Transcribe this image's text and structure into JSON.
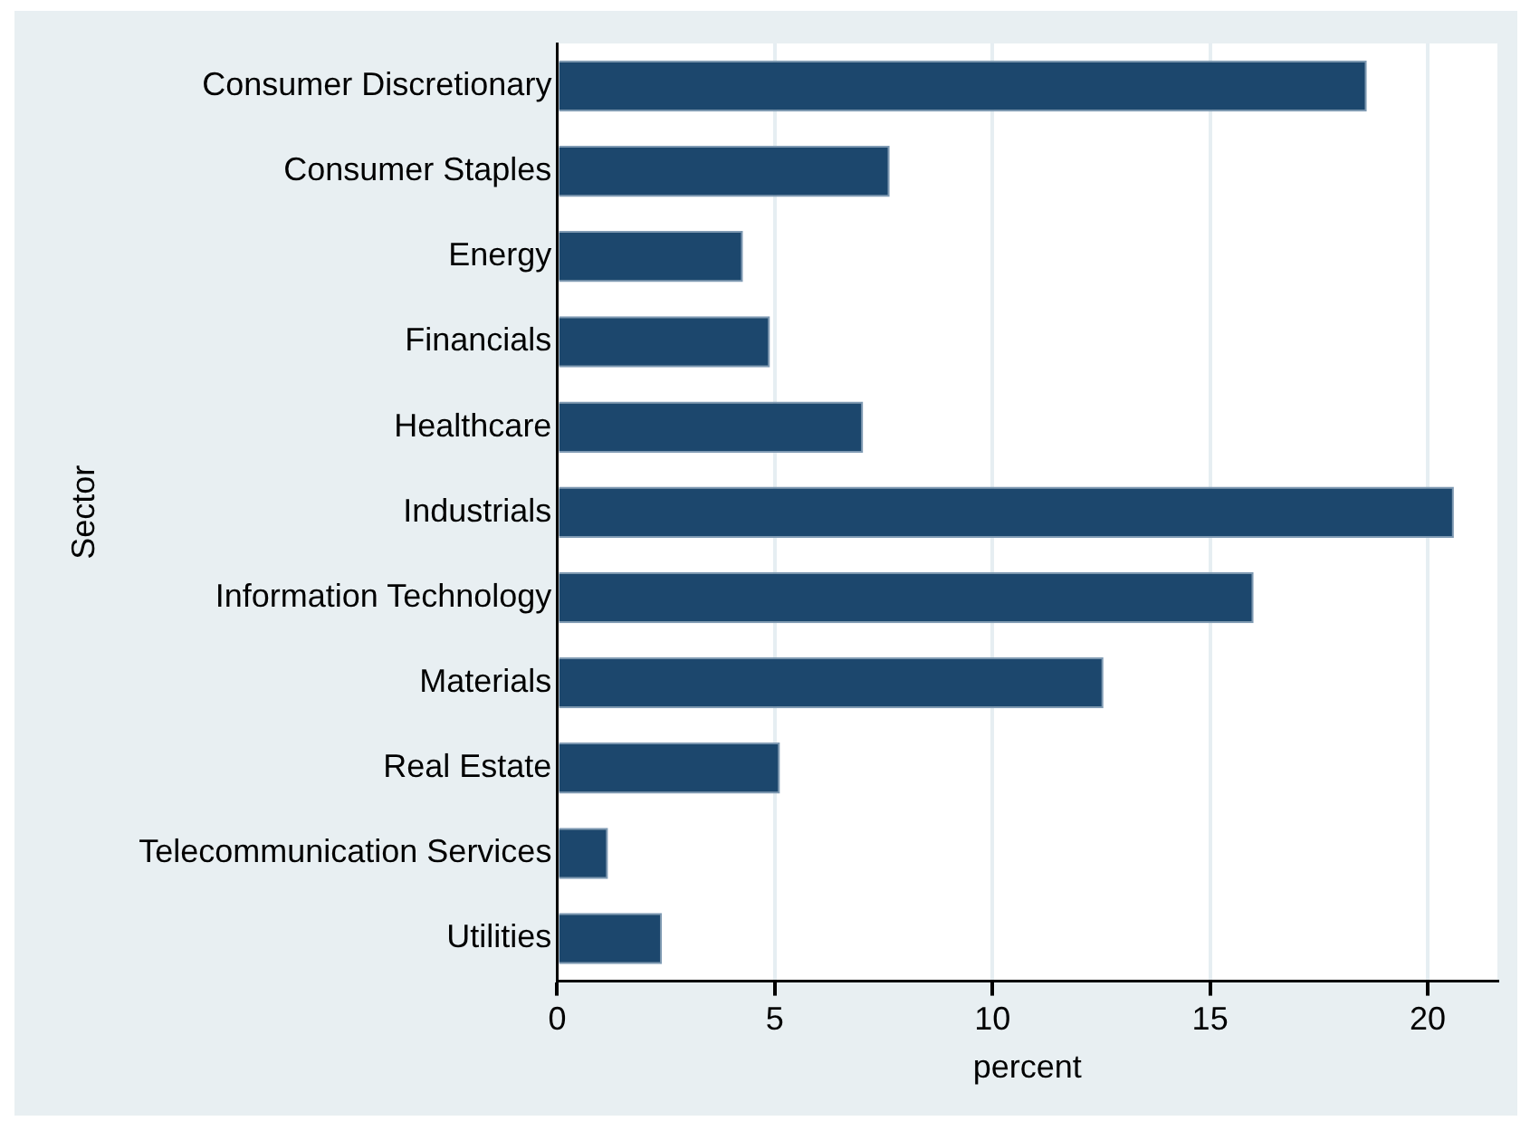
{
  "chart_data": {
    "type": "bar",
    "orientation": "horizontal",
    "xlabel": "percent",
    "ylabel": "Sector",
    "categories": [
      "Consumer Discretionary",
      "Consumer Staples",
      "Energy",
      "Financials",
      "Healthcare",
      "Industrials",
      "Information Technology",
      "Materials",
      "Real Estate",
      "Telecommunication Services",
      "Utilities"
    ],
    "values": [
      18.6,
      7.64,
      4.27,
      4.89,
      7.03,
      20.6,
      16.0,
      12.55,
      5.12,
      1.17,
      2.41
    ],
    "color": "#1c476d",
    "xlim": [
      0,
      21.6
    ],
    "xticks": [
      0,
      5,
      10,
      15,
      20
    ],
    "grid": "x",
    "legend": false
  }
}
